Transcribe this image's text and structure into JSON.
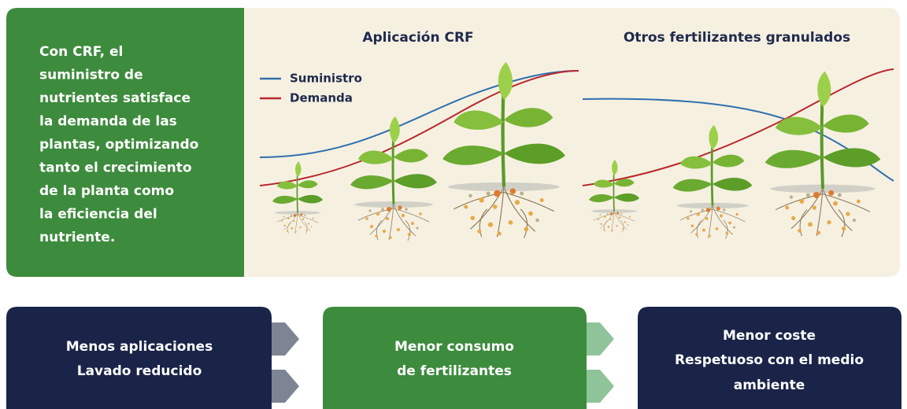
{
  "intro": {
    "lines": [
      "Con CRF, el",
      "suministro de",
      "nutrientes satisface",
      "la demanda de las",
      "plantas, optimizando",
      "tanto el crecimiento",
      "de la planta como",
      "la eficiencia del",
      "nutriente."
    ]
  },
  "panels": [
    {
      "title": "Aplicación CRF"
    },
    {
      "title": "Otros fertilizantes granulados"
    }
  ],
  "legend": [
    {
      "label": "Suministro"
    },
    {
      "label": "Demanda"
    }
  ],
  "boxes": [
    {
      "lines": [
        "Menos aplicaciones",
        "Lavado reducido"
      ]
    },
    {
      "lines": [
        "Menor consumo",
        "de fertilizantes"
      ]
    },
    {
      "lines": [
        "Menor coste",
        "Respetuoso con el medio",
        "ambiente"
      ]
    }
  ]
}
